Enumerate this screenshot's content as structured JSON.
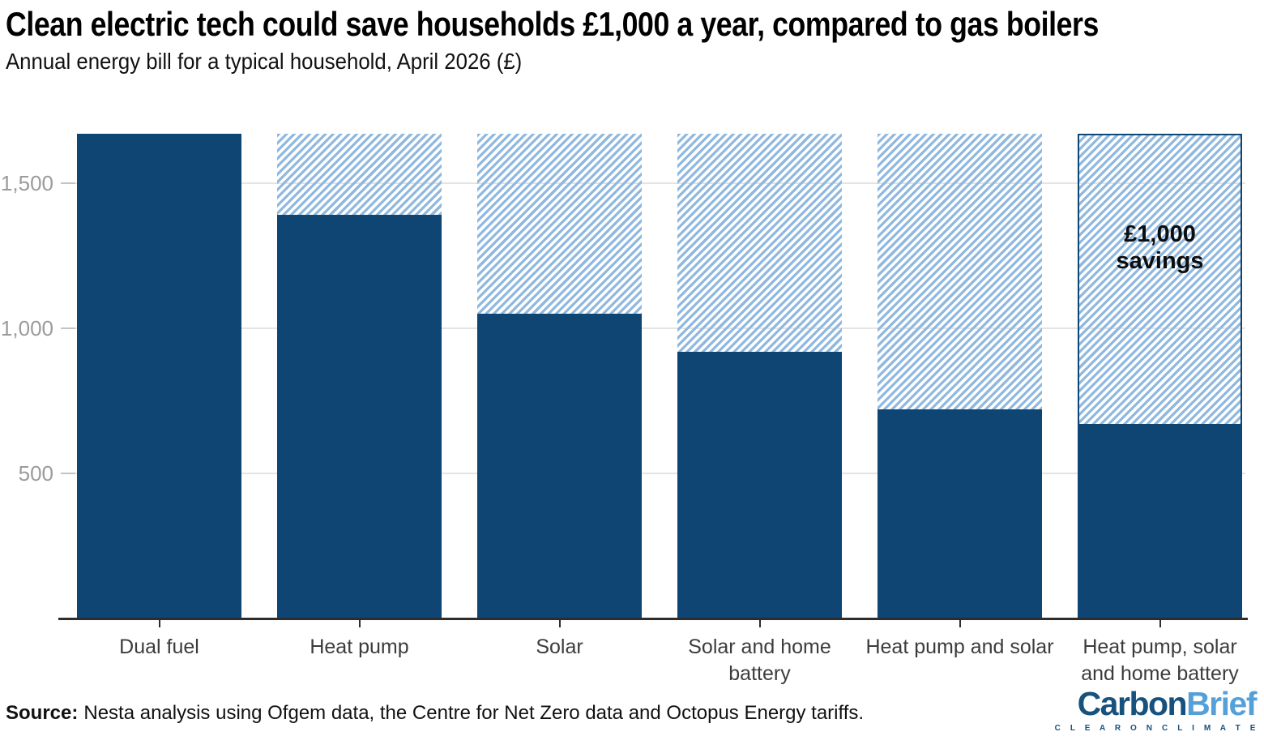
{
  "header": {
    "title": "Clean electric tech could save households £1,000 a year, compared to gas boilers",
    "subtitle": "Annual energy bill for a typical household, April 2026 (£)"
  },
  "chart_data": {
    "type": "bar",
    "stacked": true,
    "title": "Clean electric tech could save households £1,000 a year, compared to gas boilers",
    "subtitle": "Annual energy bill for a typical household, April 2026 (£)",
    "unit": "£ per year",
    "categories": [
      "Dual fuel",
      "Heat pump",
      "Solar",
      "Solar and home\nbattery",
      "Heat pump and solar",
      "Heat pump, solar\nand home battery"
    ],
    "series": [
      {
        "name": "Annual energy bill",
        "style": "solid",
        "values": [
          1670,
          1390,
          1050,
          920,
          720,
          670
        ]
      },
      {
        "name": "Savings compared to dual fuel",
        "style": "hatched",
        "values": [
          0,
          280,
          620,
          750,
          950,
          1000
        ]
      }
    ],
    "bar_total": 1670,
    "ylim": [
      0,
      1670
    ],
    "yticks": [
      500,
      1000,
      1500
    ],
    "ytick_labels": [
      "500",
      "1,000",
      "1,500"
    ],
    "grid": true,
    "legend": "none",
    "annotation": {
      "text": "£1,000\nsavings",
      "bar_index": 5,
      "outlined_bar_index": 5
    }
  },
  "colors": {
    "bar_solid": "#0e4573",
    "hatch_stripe": "#8fb8df",
    "gridline": "#e4e4e4",
    "grid_dash": "#c4c4c4",
    "axis_line": "#2d2d2d",
    "ytick_text": "#9b9b9b",
    "xtick_text": "#3c3c3c",
    "logo_dark": "#17517e",
    "logo_light": "#55a0d8"
  },
  "footer": {
    "source_label": "Source:",
    "source_text": "Nesta analysis using Ofgem data, the Centre for Net Zero data and Octopus Energy tariffs.",
    "logo": {
      "part1": "Carbon",
      "part2": "Brief",
      "tagline": "C L E A R   O N   C L I M A T E"
    }
  }
}
